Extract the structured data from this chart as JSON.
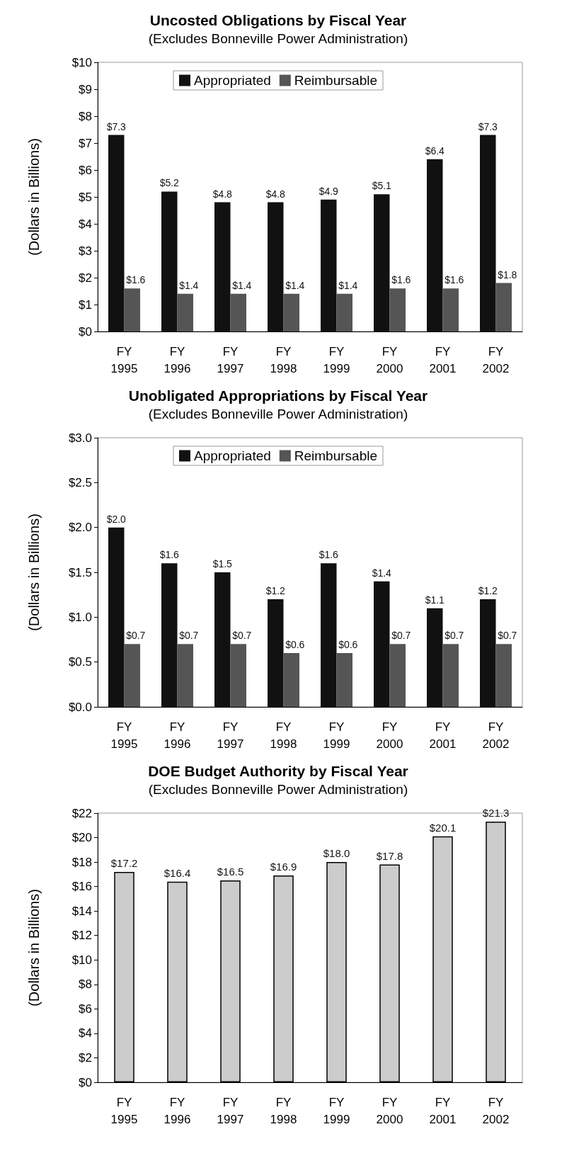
{
  "chart_data": [
    {
      "type": "bar",
      "title": "Uncosted Obligations by Fiscal Year",
      "subtitle": "(Excludes Bonneville Power Administration)",
      "ylabel": "(Dollars in Billions)",
      "categories": [
        "FY 1995",
        "FY 1996",
        "FY 1997",
        "FY 1998",
        "FY 1999",
        "FY 2000",
        "FY 2001",
        "FY 2002"
      ],
      "series": [
        {
          "name": "Appropriated",
          "color": "#111111",
          "values": [
            7.3,
            5.2,
            4.8,
            4.8,
            4.9,
            5.1,
            6.4,
            7.3
          ],
          "value_labels": [
            "$7.3",
            "$5.2",
            "$4.8",
            "$4.8",
            "$4.9",
            "$5.1",
            "$6.4",
            "$7.3"
          ]
        },
        {
          "name": "Reimbursable",
          "color": "#555555",
          "values": [
            1.6,
            1.4,
            1.4,
            1.4,
            1.4,
            1.6,
            1.6,
            1.8
          ],
          "value_labels": [
            "$1.6",
            "$1.4",
            "$1.4",
            "$1.4",
            "$1.4",
            "$1.6",
            "$1.6",
            "$1.8"
          ]
        }
      ],
      "ylim": [
        0,
        10
      ],
      "yticks": [
        {
          "value": 0,
          "label": "$0"
        },
        {
          "value": 1,
          "label": "$1"
        },
        {
          "value": 2,
          "label": "$2"
        },
        {
          "value": 3,
          "label": "$3"
        },
        {
          "value": 4,
          "label": "$4"
        },
        {
          "value": 5,
          "label": "$5"
        },
        {
          "value": 6,
          "label": "$6"
        },
        {
          "value": 7,
          "label": "$7"
        },
        {
          "value": 8,
          "label": "$8"
        },
        {
          "value": 9,
          "label": "$9"
        },
        {
          "value": 10,
          "label": "$10"
        }
      ],
      "grid": false,
      "legend": "top"
    },
    {
      "type": "bar",
      "title": "Unobligated Appropriations by Fiscal Year",
      "subtitle": "(Excludes Bonneville Power Administration)",
      "ylabel": "(Dollars in Billions)",
      "categories": [
        "FY 1995",
        "FY 1996",
        "FY 1997",
        "FY 1998",
        "FY 1999",
        "FY 2000",
        "FY 2001",
        "FY 2002"
      ],
      "series": [
        {
          "name": "Appropriated",
          "color": "#111111",
          "values": [
            2.0,
            1.6,
            1.5,
            1.2,
            1.6,
            1.4,
            1.1,
            1.2
          ],
          "value_labels": [
            "$2.0",
            "$1.6",
            "$1.5",
            "$1.2",
            "$1.6",
            "$1.4",
            "$1.1",
            "$1.2"
          ]
        },
        {
          "name": "Reimbursable",
          "color": "#555555",
          "values": [
            0.7,
            0.7,
            0.7,
            0.6,
            0.6,
            0.7,
            0.7,
            0.7
          ],
          "value_labels": [
            "$0.7",
            "$0.7",
            "$0.7",
            "$0.6",
            "$0.6",
            "$0.7",
            "$0.7",
            "$0.7"
          ]
        }
      ],
      "ylim": [
        0,
        3
      ],
      "yticks": [
        {
          "value": 0,
          "label": "$0.0"
        },
        {
          "value": 0.5,
          "label": "$0.5"
        },
        {
          "value": 1,
          "label": "$1.0"
        },
        {
          "value": 1.5,
          "label": "$1.5"
        },
        {
          "value": 2,
          "label": "$2.0"
        },
        {
          "value": 2.5,
          "label": "$2.5"
        },
        {
          "value": 3,
          "label": "$3.0"
        }
      ],
      "grid": false,
      "legend": "top"
    },
    {
      "type": "bar",
      "title": "DOE Budget Authority by Fiscal Year",
      "subtitle": "(Excludes Bonneville Power Administration)",
      "ylabel": "(Dollars in Billions)",
      "categories": [
        "FY 1995",
        "FY 1996",
        "FY 1997",
        "FY 1998",
        "FY 1999",
        "FY 2000",
        "FY 2001",
        "FY 2002"
      ],
      "series": [
        {
          "color": "#cccccc",
          "values": [
            17.2,
            16.4,
            16.5,
            16.9,
            18.0,
            17.8,
            20.1,
            21.3
          ],
          "value_labels": [
            "$17.2",
            "$16.4",
            "$16.5",
            "$16.9",
            "$18.0",
            "$17.8",
            "$20.1",
            "$21.3"
          ]
        }
      ],
      "ylim": [
        0,
        22
      ],
      "yticks": [
        {
          "value": 0,
          "label": "$0"
        },
        {
          "value": 2,
          "label": "$2"
        },
        {
          "value": 4,
          "label": "$4"
        },
        {
          "value": 6,
          "label": "$6"
        },
        {
          "value": 8,
          "label": "$8"
        },
        {
          "value": 10,
          "label": "$10"
        },
        {
          "value": 12,
          "label": "$12"
        },
        {
          "value": 14,
          "label": "$14"
        },
        {
          "value": 16,
          "label": "$16"
        },
        {
          "value": 18,
          "label": "$18"
        },
        {
          "value": 20,
          "label": "$20"
        },
        {
          "value": 22,
          "label": "$22"
        }
      ],
      "grid": false,
      "legend": false
    }
  ]
}
